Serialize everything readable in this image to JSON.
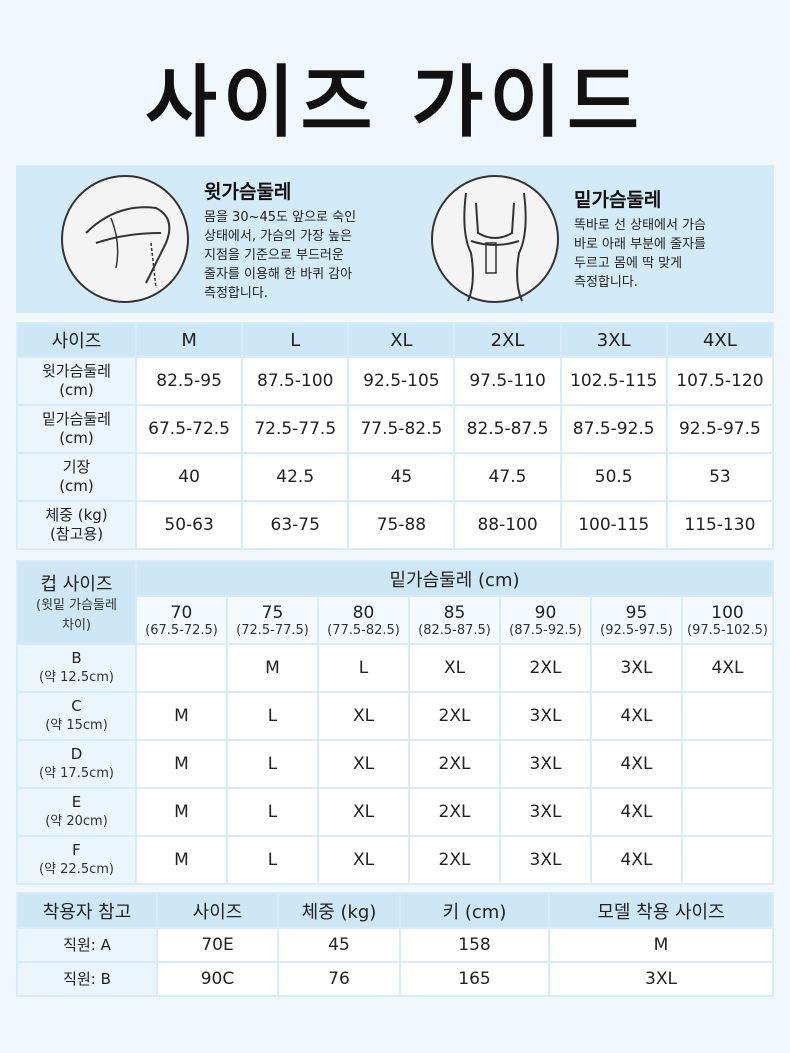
{
  "title": "사이즈 가이드",
  "measure": [
    {
      "title": "윗가슴둘레",
      "lines": [
        "몸을 30~45도 앞으로 숙인",
        "상태에서, 가슴의 가장 높은",
        "지점을 기준으로 부드러운",
        "줄자를 이용해 한 바퀴 감아",
        "측정합니다."
      ]
    },
    {
      "title": "밑가슴둘레",
      "lines": [
        "똑바로 선 상태에서 가슴",
        "바로 아래 부분에 줄자를",
        "두르고 몸에 딱 맞게",
        "측정합니다."
      ]
    }
  ],
  "size_table": {
    "header": [
      "사이즈",
      "M",
      "L",
      "XL",
      "2XL",
      "3XL",
      "4XL"
    ],
    "rows": [
      {
        "label": [
          "윗가슴둘레",
          "(cm)"
        ],
        "cells": [
          "82.5-95",
          "87.5-100",
          "92.5-105",
          "97.5-110",
          "102.5-115",
          "107.5-120"
        ]
      },
      {
        "label": [
          "밑가슴둘레",
          "(cm)"
        ],
        "cells": [
          "67.5-72.5",
          "72.5-77.5",
          "77.5-82.5",
          "82.5-87.5",
          "87.5-92.5",
          "92.5-97.5"
        ]
      },
      {
        "label": [
          "기장",
          "(cm)"
        ],
        "cells": [
          "40",
          "42.5",
          "45",
          "47.5",
          "50.5",
          "53"
        ]
      },
      {
        "label": [
          "체중 (kg)",
          "(참고용)"
        ],
        "cells": [
          "50-63",
          "63-75",
          "75-88",
          "88-100",
          "100-115",
          "115-130"
        ]
      }
    ]
  },
  "cup_table": {
    "title": "컵 사이즈",
    "subtitle": [
      "(윗밑 가슴둘레",
      "차이)"
    ],
    "band_title": "밑가슴둘레 (cm)",
    "columns": [
      {
        "band": "70",
        "range": "(67.5-72.5)"
      },
      {
        "band": "75",
        "range": "(72.5-77.5)"
      },
      {
        "band": "80",
        "range": "(77.5-82.5)"
      },
      {
        "band": "85",
        "range": "(82.5-87.5)"
      },
      {
        "band": "90",
        "range": "(87.5-92.5)"
      },
      {
        "band": "95",
        "range": "(92.5-97.5)"
      },
      {
        "band": "100",
        "range": "(97.5-102.5)"
      }
    ],
    "rows": [
      {
        "cup": "B",
        "diff": "(약 12.5cm)",
        "sizes": [
          null,
          "M",
          "L",
          "XL",
          "2XL",
          "3XL",
          "4XL"
        ]
      },
      {
        "cup": "C",
        "diff": "(약 15cm)",
        "sizes": [
          "M",
          "L",
          "XL",
          "2XL",
          "3XL",
          "4XL",
          null
        ]
      },
      {
        "cup": "D",
        "diff": "(약 17.5cm)",
        "sizes": [
          "M",
          "L",
          "XL",
          "2XL",
          "3XL",
          "4XL",
          null
        ]
      },
      {
        "cup": "E",
        "diff": "(약 20cm)",
        "sizes": [
          "M",
          "L",
          "XL",
          "2XL",
          "3XL",
          "4XL",
          null
        ]
      },
      {
        "cup": "F",
        "diff": "(약 22.5cm)",
        "sizes": [
          "M",
          "L",
          "XL",
          "2XL",
          "3XL",
          "4XL",
          null
        ]
      }
    ]
  },
  "model_table": {
    "header": [
      "착용자 참고",
      "사이즈",
      "체중 (kg)",
      "키 (cm)",
      "모델 착용 사이즈"
    ],
    "rows": [
      [
        "직원: A",
        "70E",
        "45",
        "158",
        "M"
      ],
      [
        "직원: B",
        "90C",
        "76",
        "165",
        "3XL"
      ]
    ]
  }
}
